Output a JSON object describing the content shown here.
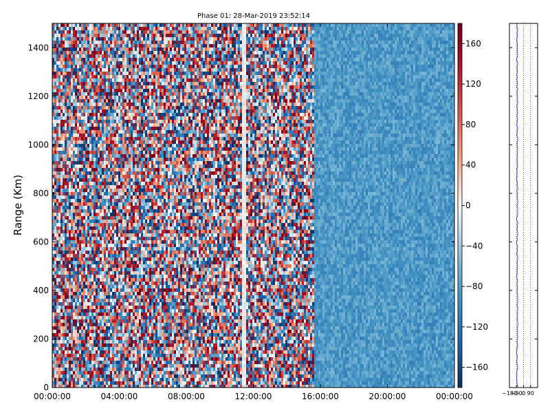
{
  "chart_data": [
    {
      "type": "heatmap",
      "title": "Phase 01: 28-Mar-2019 23:52:14",
      "ylabel": "Range (Km)",
      "xlabel": "",
      "x_tick_labels": [
        "00:00:00",
        "04:00:00",
        "08:00:00",
        "12:00:00",
        "16:00:00",
        "20:00:00",
        "00:00:00"
      ],
      "y_ticks": [
        0,
        200,
        400,
        600,
        800,
        1000,
        1200,
        1400
      ],
      "ylim": [
        0,
        1500
      ],
      "xlim_hours": [
        0,
        24
      ],
      "colorbar": {
        "ticks": [
          160,
          120,
          80,
          40,
          0,
          -40,
          -80,
          -120,
          -160
        ],
        "tick_labels": [
          "160",
          "120",
          "80",
          "40",
          "0",
          "−40",
          "−80",
          "−120",
          "−160"
        ],
        "range": [
          -180,
          180
        ],
        "colormap": "RdBu_r"
      },
      "regions": [
        {
          "x_start_hours": 0,
          "x_end_hours": 15.6,
          "pattern": "random phase spanning -180 to 180"
        },
        {
          "x_start_hours": 15.6,
          "x_end_hours": 24,
          "pattern": "uniform phase approx -60 to -120"
        }
      ],
      "bright_columns_hours": [
        11.4
      ]
    },
    {
      "type": "line",
      "title": "",
      "x_tick_labels": [
        "−180",
        "−90",
        "0",
        "90"
      ],
      "xlim": [
        -180,
        180
      ],
      "ylim": [
        0,
        1500
      ],
      "vertical_gridlines": [
        -90,
        0,
        90,
        180
      ],
      "series": [
        {
          "description_values": "mean phase versus range, near -90 to -75",
          "approx_x": -80
        }
      ]
    }
  ],
  "colors": {
    "trace": "#1a1aff",
    "axis": "#000000"
  }
}
